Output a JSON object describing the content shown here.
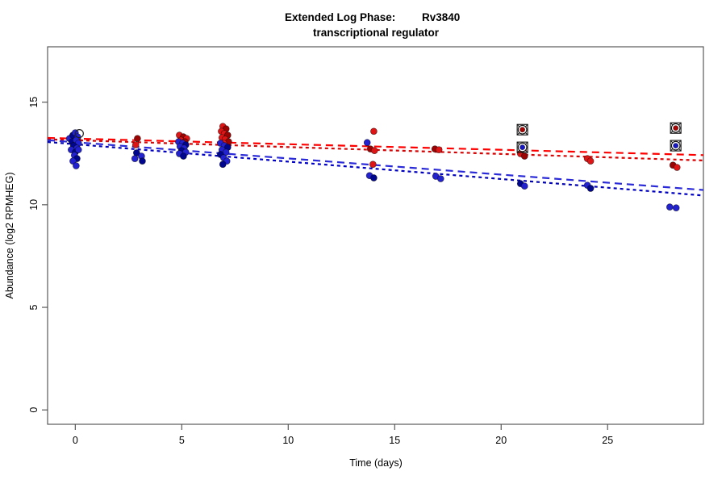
{
  "title": {
    "line1_left": "Extended Log Phase:",
    "line1_right": "Rv3840",
    "line2": "transcriptional regulator"
  },
  "chart_data": {
    "type": "scatter",
    "title": "Extended Log Phase: Rv3840 transcriptional regulator",
    "xlabel": "Time  (days)",
    "ylabel": "Abundance  (log2 RPMHEG)",
    "xlim": [
      -1.3,
      29.5
    ],
    "ylim": [
      -0.7,
      17.7
    ],
    "x_ticks": [
      0,
      5,
      10,
      15,
      20,
      25
    ],
    "y_ticks": [
      0,
      5,
      10,
      15
    ],
    "grid": false,
    "legend": "none",
    "series": [
      {
        "name": "red",
        "color_a": "#df1515",
        "color_b": "#9c0404",
        "points": [
          [
            -0.15,
            13.31
          ],
          [
            0,
            13.23
          ],
          [
            0.11,
            13.19
          ],
          [
            -0.08,
            13.11
          ],
          [
            2.92,
            13.23
          ],
          [
            2.84,
            12.92
          ],
          [
            4.89,
            13.39
          ],
          [
            5.08,
            13.31
          ],
          [
            5.23,
            13.23
          ],
          [
            4.96,
            13.15
          ],
          [
            5.15,
            13.07
          ],
          [
            5.0,
            12.72
          ],
          [
            6.93,
            13.82
          ],
          [
            7.08,
            13.7
          ],
          [
            6.86,
            13.58
          ],
          [
            7.0,
            13.47
          ],
          [
            7.16,
            13.39
          ],
          [
            6.89,
            13.27
          ],
          [
            7.04,
            13.19
          ],
          [
            7.2,
            13.07
          ],
          [
            6.97,
            13.0
          ],
          [
            14.02,
            13.58
          ],
          [
            13.86,
            12.72
          ],
          [
            14.05,
            12.64
          ],
          [
            13.98,
            11.97
          ],
          [
            16.89,
            12.72
          ],
          [
            17.08,
            12.68
          ],
          [
            20.91,
            12.49
          ],
          [
            21.1,
            12.37
          ],
          [
            24.05,
            12.25
          ],
          [
            24.2,
            12.13
          ],
          [
            28.07,
            11.93
          ],
          [
            28.26,
            11.82
          ]
        ]
      },
      {
        "name": "blue",
        "color_a": "#2222d0",
        "color_b": "#00068e",
        "points": [
          [
            -0.27,
            13.23
          ],
          [
            -0.11,
            13.39
          ],
          [
            0,
            13.51
          ],
          [
            0.11,
            13.31
          ],
          [
            -0.15,
            13.07
          ],
          [
            0.04,
            13.15
          ],
          [
            0.15,
            13.0
          ],
          [
            -0.08,
            12.88
          ],
          [
            0.08,
            12.76
          ],
          [
            -0.19,
            12.68
          ],
          [
            0,
            12.56
          ],
          [
            0.15,
            12.68
          ],
          [
            -0.04,
            12.41
          ],
          [
            0.08,
            12.25
          ],
          [
            -0.11,
            12.13
          ],
          [
            0.04,
            11.9
          ],
          [
            2.88,
            12.53
          ],
          [
            3.11,
            12.37
          ],
          [
            2.8,
            12.25
          ],
          [
            3.15,
            12.13
          ],
          [
            4.85,
            13.07
          ],
          [
            5.04,
            13.0
          ],
          [
            5.19,
            12.92
          ],
          [
            4.92,
            12.84
          ],
          [
            5.11,
            12.76
          ],
          [
            5.0,
            12.64
          ],
          [
            5.19,
            12.56
          ],
          [
            4.89,
            12.49
          ],
          [
            5.08,
            12.37
          ],
          [
            6.82,
            13.0
          ],
          [
            7.0,
            12.88
          ],
          [
            7.16,
            12.8
          ],
          [
            6.89,
            12.68
          ],
          [
            7.08,
            12.56
          ],
          [
            6.82,
            12.45
          ],
          [
            6.97,
            12.29
          ],
          [
            7.12,
            12.13
          ],
          [
            6.93,
            11.97
          ],
          [
            13.71,
            13.03
          ],
          [
            13.82,
            11.42
          ],
          [
            14.02,
            11.31
          ],
          [
            16.93,
            11.39
          ],
          [
            17.16,
            11.27
          ],
          [
            20.91,
            11.03
          ],
          [
            21.1,
            10.91
          ],
          [
            24.05,
            10.95
          ],
          [
            24.2,
            10.8
          ],
          [
            27.92,
            9.89
          ],
          [
            28.22,
            9.85
          ]
        ]
      }
    ],
    "flagged_points": [
      {
        "day": 21.0,
        "value": 13.66,
        "color": "#aa0303",
        "marker": "circle-square"
      },
      {
        "day": 21.0,
        "value": 12.8,
        "color": "#1616c4",
        "marker": "circle-square"
      },
      {
        "day": 28.2,
        "value": 13.74,
        "color": "#aa0303",
        "marker": "circle-square"
      },
      {
        "day": 28.2,
        "value": 12.88,
        "color": "#1616c4",
        "marker": "circle-square"
      },
      {
        "day": 0.19,
        "value": 13.47,
        "color": "none",
        "marker": "open-circle"
      }
    ],
    "trend_lines": [
      {
        "name": "red-fit-1",
        "color": "#ff0000",
        "dash": "9,6",
        "x1": -1.3,
        "y1": 13.26,
        "x2": 29.5,
        "y2": 12.42
      },
      {
        "name": "red-fit-2",
        "color": "#dd0000",
        "dash": "4,4",
        "x1": -1.3,
        "y1": 13.19,
        "x2": 29.5,
        "y2": 12.16
      },
      {
        "name": "blue-fit-1",
        "color": "#2a2ad8",
        "dash": "9,6",
        "x1": -1.3,
        "y1": 13.15,
        "x2": 29.5,
        "y2": 10.72
      },
      {
        "name": "blue-fit-2",
        "color": "#0000c0",
        "dash": "4,4",
        "x1": -1.3,
        "y1": 13.06,
        "x2": 29.5,
        "y2": 10.45
      }
    ]
  },
  "colors": {
    "axis": "#4a4a4a",
    "point_stroke": "#0a0a0a",
    "flag_stroke": "#111111"
  }
}
